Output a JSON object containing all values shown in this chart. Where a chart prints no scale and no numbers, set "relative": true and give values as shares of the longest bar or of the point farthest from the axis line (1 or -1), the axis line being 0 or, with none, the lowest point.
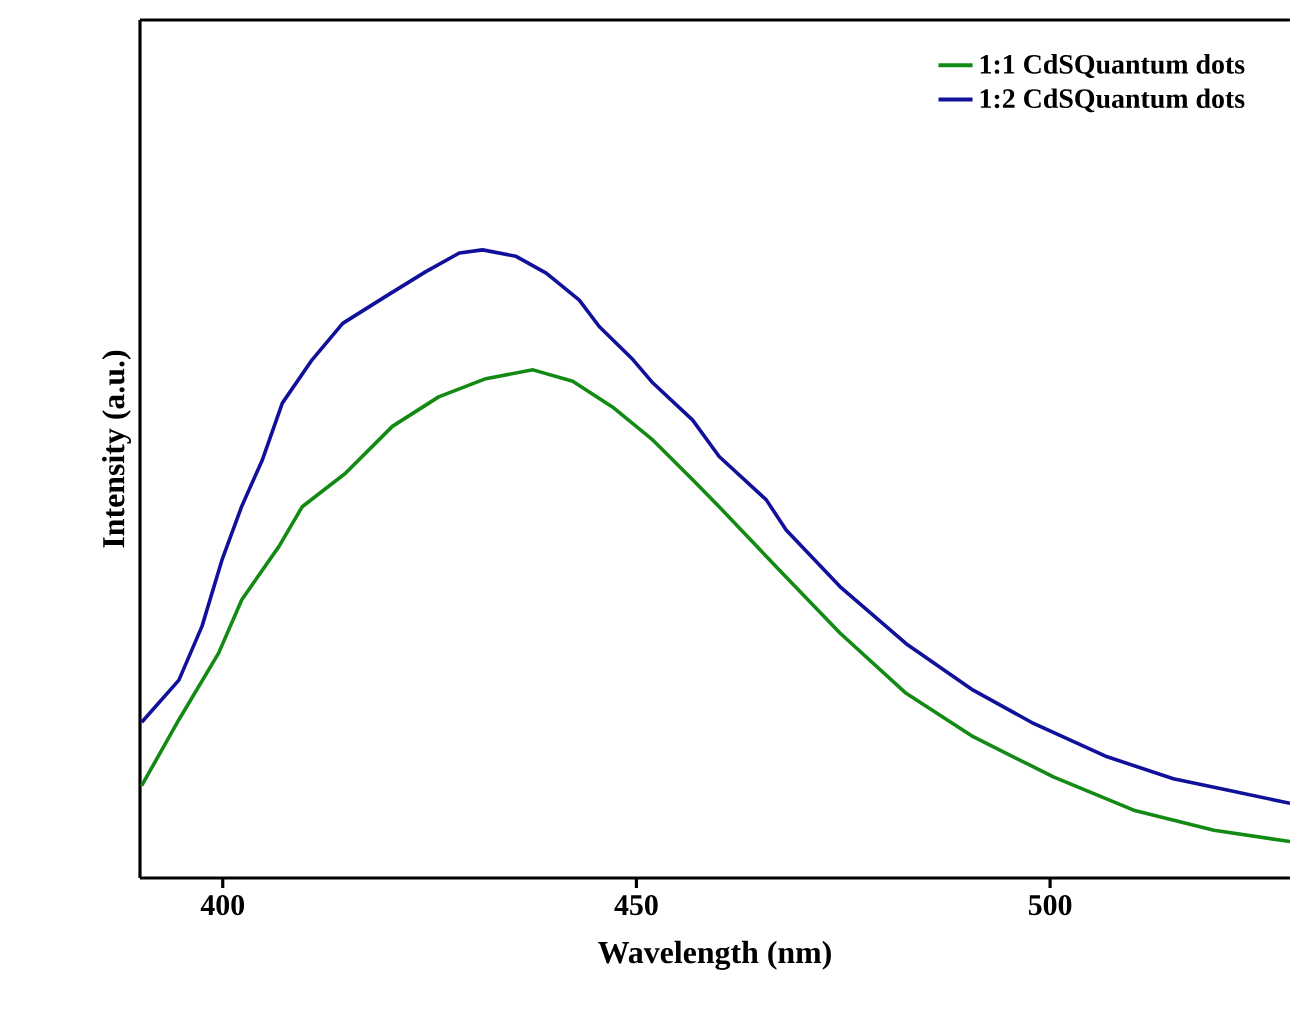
{
  "chart_data": {
    "type": "line",
    "relative": true,
    "xlabel": "Wavelength (nm)",
    "ylabel": "Intensity (a.u.)",
    "xlim": [
      390,
      529
    ],
    "xticks": [
      400,
      450,
      500
    ],
    "legend": "top right",
    "grid": false,
    "marker": "none",
    "line_style": "solid",
    "series": [
      {
        "name": "1:1 CdSQuantum dots",
        "color": "#138a13",
        "x": [
          390.2,
          394.7,
          399.5,
          402.3,
          406.8,
          409.6,
          414.8,
          420.5,
          426.1,
          431.8,
          437.5,
          442.3,
          447.1,
          452,
          456.8,
          460,
          467.3,
          474.6,
          482.6,
          490.7,
          500.4,
          510.1,
          519.8,
          529
        ],
        "values": [
          0.147,
          0.252,
          0.358,
          0.443,
          0.528,
          0.591,
          0.644,
          0.719,
          0.766,
          0.795,
          0.809,
          0.791,
          0.75,
          0.697,
          0.634,
          0.591,
          0.49,
          0.39,
          0.294,
          0.225,
          0.161,
          0.108,
          0.076,
          0.058
        ]
      },
      {
        "name": "1:2 CdSQuantum dots",
        "color": "#10109a",
        "x": [
          390.2,
          394.7,
          397.5,
          399.9,
          402.3,
          404.8,
          407.2,
          410.8,
          414.5,
          419.7,
          424.5,
          428.6,
          431.4,
          435.4,
          439.1,
          443.1,
          445.5,
          449.6,
          452,
          456.8,
          460,
          465.7,
          468.1,
          474.6,
          482.6,
          490.7,
          498,
          506.9,
          514.9,
          521.4,
          529
        ],
        "values": [
          0.248,
          0.315,
          0.401,
          0.506,
          0.592,
          0.666,
          0.756,
          0.825,
          0.883,
          0.926,
          0.965,
          0.995,
          1.0,
          0.99,
          0.963,
          0.92,
          0.878,
          0.825,
          0.788,
          0.729,
          0.671,
          0.602,
          0.554,
          0.464,
          0.373,
          0.299,
          0.246,
          0.193,
          0.158,
          0.14,
          0.119
        ]
      }
    ]
  }
}
